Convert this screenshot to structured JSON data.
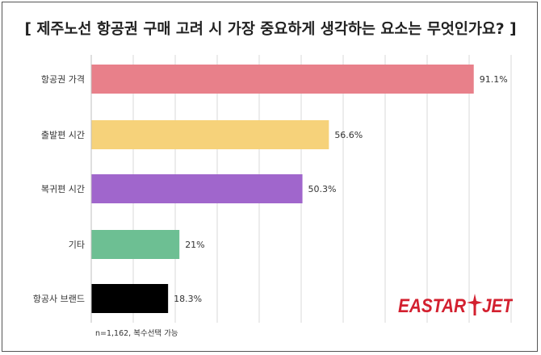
{
  "title": "[ 제주노선 항공권 구매 고려 시 가장 중요하게 생각하는 요소는 무엇인가요? ]",
  "note": "n=1,162, 복수선택 가능",
  "logo": {
    "left": "EASTAR",
    "right": "JET"
  },
  "colors": {
    "brand_red": "#d3202f",
    "grid": "#d9d9d9"
  },
  "chart_data": {
    "type": "bar",
    "orientation": "horizontal",
    "categories": [
      "항공권 가격",
      "출발편 시간",
      "복귀편 시간",
      "기타",
      "항공사 브랜드"
    ],
    "values": [
      91.1,
      56.6,
      50.3,
      21,
      18.3
    ],
    "value_labels": [
      "91.1%",
      "56.6%",
      "50.3%",
      "21%",
      "18.3%"
    ],
    "colors": [
      "#e8808a",
      "#f6d27a",
      "#a066cc",
      "#6dbf93",
      "#000000"
    ],
    "xlim": [
      0,
      100
    ],
    "grid": true,
    "legend": "none"
  }
}
